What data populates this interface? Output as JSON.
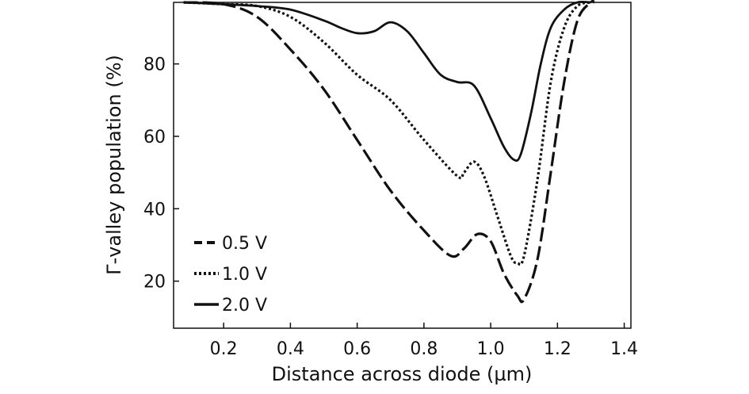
{
  "chart_data": {
    "type": "line",
    "xlabel": "Distance across diode (µm)",
    "ylabel": "Γ-valley population (%)",
    "xlim": [
      0.05,
      1.42
    ],
    "ylim": [
      7,
      97
    ],
    "x_ticks": [
      0.2,
      0.4,
      0.6,
      0.8,
      1.0,
      1.2,
      1.4
    ],
    "x_tick_labels": [
      "0.2",
      "0.4",
      "0.6",
      "0.8",
      "1.0",
      "1.2",
      "1.4"
    ],
    "y_ticks": [
      20,
      40,
      60,
      80
    ],
    "y_tick_labels": [
      "20",
      "40",
      "60",
      "80"
    ],
    "grid": false,
    "legend_position": "bottom-left",
    "series": [
      {
        "name": "0.5 V",
        "style": "dashed",
        "x": [
          0.08,
          0.2,
          0.3,
          0.4,
          0.5,
          0.6,
          0.7,
          0.8,
          0.88,
          0.92,
          0.96,
          1.0,
          1.04,
          1.08,
          1.1,
          1.14,
          1.18,
          1.22,
          1.26,
          1.3,
          1.31
        ],
        "y": [
          97,
          96.5,
          93,
          84,
          73,
          59,
          45,
          34,
          27,
          29,
          33,
          31,
          22,
          16,
          15,
          26,
          50,
          75,
          92,
          97,
          97
        ]
      },
      {
        "name": "1.0 V",
        "style": "dotted",
        "x": [
          0.08,
          0.2,
          0.3,
          0.4,
          0.5,
          0.6,
          0.7,
          0.8,
          0.9,
          0.92,
          0.95,
          0.98,
          1.02,
          1.06,
          1.08,
          1.1,
          1.14,
          1.18,
          1.22,
          1.26,
          1.3
        ],
        "y": [
          97,
          96.5,
          96,
          93,
          86,
          77,
          70,
          59,
          49,
          50,
          53,
          49,
          38,
          27,
          25,
          27,
          48,
          75,
          90,
          96,
          97
        ]
      },
      {
        "name": "2.0 V",
        "style": "solid",
        "x": [
          0.08,
          0.2,
          0.3,
          0.4,
          0.5,
          0.55,
          0.6,
          0.65,
          0.7,
          0.75,
          0.8,
          0.85,
          0.9,
          0.95,
          1.0,
          1.04,
          1.07,
          1.09,
          1.12,
          1.15,
          1.18,
          1.22,
          1.26,
          1.3
        ],
        "y": [
          97,
          96.5,
          96,
          95,
          92,
          90,
          88.5,
          89,
          91.5,
          89,
          83,
          77,
          75,
          74,
          65,
          57,
          53.5,
          55,
          66,
          80,
          90,
          95,
          97,
          97
        ]
      }
    ]
  }
}
